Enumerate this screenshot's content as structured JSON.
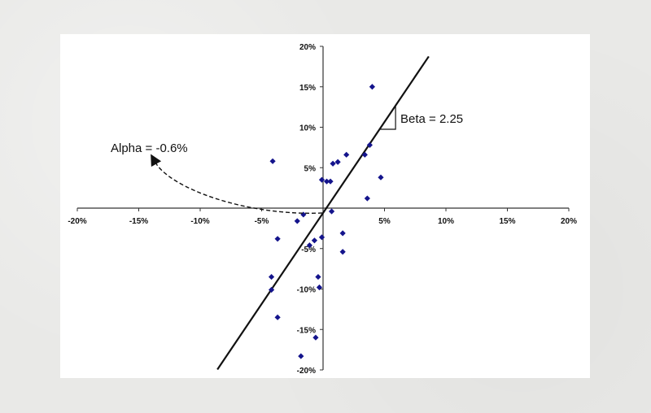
{
  "chart_data": {
    "type": "scatter",
    "xlim": [
      -20,
      20
    ],
    "ylim": [
      -20,
      20
    ],
    "x_ticks": [
      {
        "value": -20,
        "label": "-20%"
      },
      {
        "value": -15,
        "label": "-15%"
      },
      {
        "value": -10,
        "label": "-10%"
      },
      {
        "value": -5,
        "label": "-5%"
      },
      {
        "value": 5,
        "label": "5%"
      },
      {
        "value": 10,
        "label": "10%"
      },
      {
        "value": 15,
        "label": "15%"
      },
      {
        "value": 20,
        "label": "20%"
      }
    ],
    "y_ticks": [
      {
        "value": 20,
        "label": "20%"
      },
      {
        "value": 15,
        "label": "15%"
      },
      {
        "value": 10,
        "label": "10%"
      },
      {
        "value": 5,
        "label": "5%"
      },
      {
        "value": -5,
        "label": "-5%"
      },
      {
        "value": -10,
        "label": "-10%"
      },
      {
        "value": -15,
        "label": "-15%"
      },
      {
        "value": -20,
        "label": "-20%"
      }
    ],
    "points": [
      {
        "x": 4.0,
        "y": 15.0
      },
      {
        "x": 3.8,
        "y": 7.8
      },
      {
        "x": 3.4,
        "y": 6.6
      },
      {
        "x": 1.9,
        "y": 6.6
      },
      {
        "x": 1.2,
        "y": 5.7
      },
      {
        "x": 0.8,
        "y": 5.5
      },
      {
        "x": 4.7,
        "y": 3.8
      },
      {
        "x": -4.1,
        "y": 5.8
      },
      {
        "x": -0.1,
        "y": 3.5
      },
      {
        "x": 0.3,
        "y": 3.3
      },
      {
        "x": 0.6,
        "y": 3.3
      },
      {
        "x": 3.6,
        "y": 1.2
      },
      {
        "x": 0.7,
        "y": -0.4
      },
      {
        "x": -1.6,
        "y": -0.8
      },
      {
        "x": -2.1,
        "y": -1.6
      },
      {
        "x": 1.6,
        "y": -3.1
      },
      {
        "x": -0.1,
        "y": -3.6
      },
      {
        "x": -0.7,
        "y": -4.0
      },
      {
        "x": -3.7,
        "y": -3.8
      },
      {
        "x": -1.1,
        "y": -4.6
      },
      {
        "x": 1.6,
        "y": -5.4
      },
      {
        "x": -4.2,
        "y": -8.5
      },
      {
        "x": -0.4,
        "y": -8.5
      },
      {
        "x": -0.3,
        "y": -9.8
      },
      {
        "x": -4.2,
        "y": -10.1
      },
      {
        "x": -3.7,
        "y": -13.5
      },
      {
        "x": -0.6,
        "y": -16.0
      },
      {
        "x": -1.8,
        "y": -18.3
      }
    ],
    "regression": {
      "alpha": -0.6,
      "beta": 2.25
    },
    "annotations": {
      "alpha_label": "Alpha = -0.6%",
      "beta_label": "Beta = 2.25"
    },
    "grid": false,
    "marker_color": "#14148c",
    "line_color": "#111111"
  }
}
